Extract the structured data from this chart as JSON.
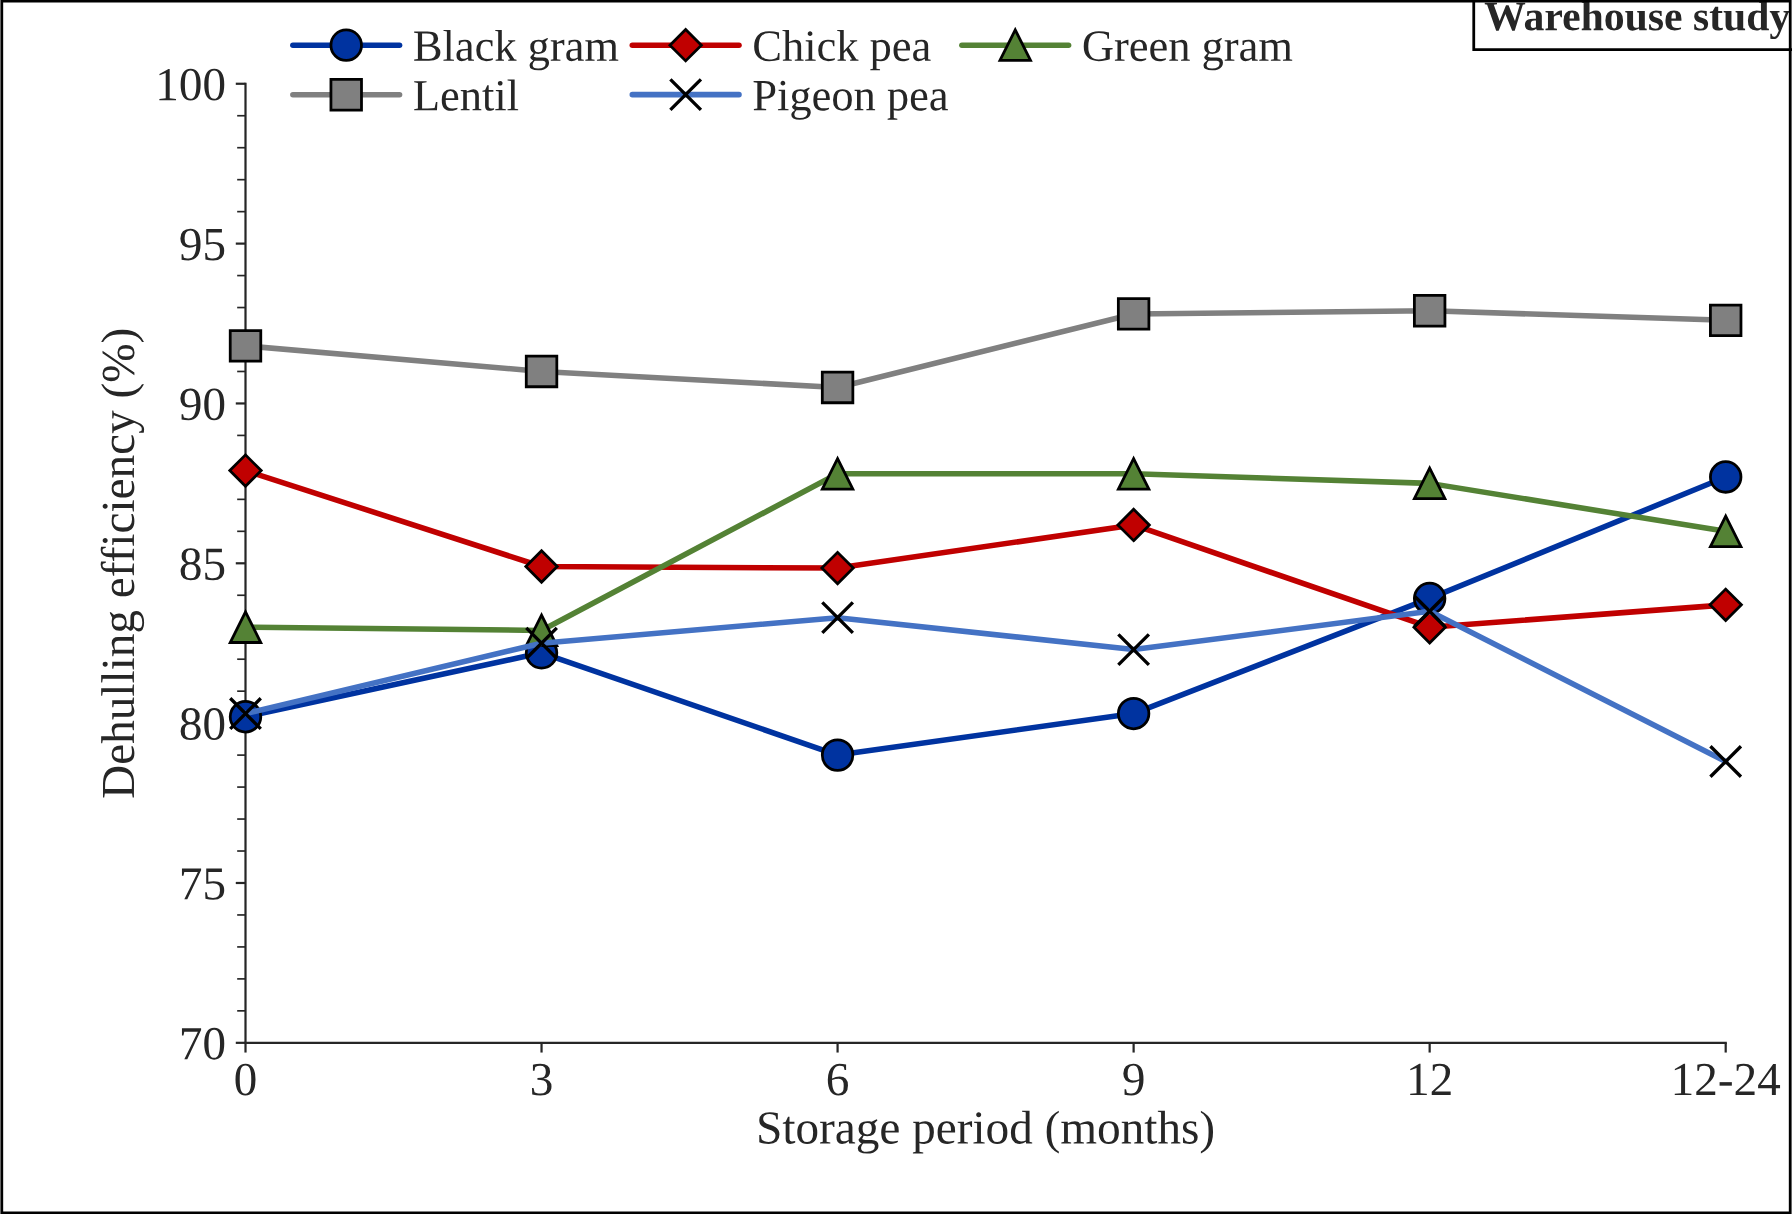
{
  "chart_data": {
    "type": "line",
    "xlabel": "Storage period (months)",
    "ylabel": "Dehulling efficiency (%)",
    "categories": [
      "0",
      "3",
      "6",
      "9",
      "12",
      "12-24"
    ],
    "ylim": [
      70,
      100
    ],
    "yticks": [
      70,
      75,
      80,
      85,
      90,
      95,
      100
    ],
    "grid": false,
    "legend": "top",
    "annotations": [
      "Warehouse study"
    ],
    "series": [
      {
        "name": "Black gram",
        "color": "#0033a0",
        "marker": "circle",
        "values": [
          80.2,
          82.2,
          79.0,
          80.3,
          83.9,
          87.7
        ]
      },
      {
        "name": "Chick pea",
        "color": "#c00000",
        "marker": "diamond",
        "values": [
          87.9,
          84.9,
          84.85,
          86.2,
          83.0,
          83.7
        ]
      },
      {
        "name": "Green gram",
        "color": "#548235",
        "marker": "triangle",
        "values": [
          83.0,
          82.9,
          87.8,
          87.8,
          87.5,
          86.0
        ]
      },
      {
        "name": "Lentil",
        "color": "#808080",
        "marker": "square",
        "values": [
          91.8,
          91.0,
          90.5,
          92.8,
          92.9,
          92.6
        ]
      },
      {
        "name": "Pigeon pea",
        "color": "#4472c4",
        "marker": "cross",
        "values": [
          80.3,
          82.5,
          83.3,
          82.3,
          83.5,
          78.8
        ]
      }
    ]
  }
}
